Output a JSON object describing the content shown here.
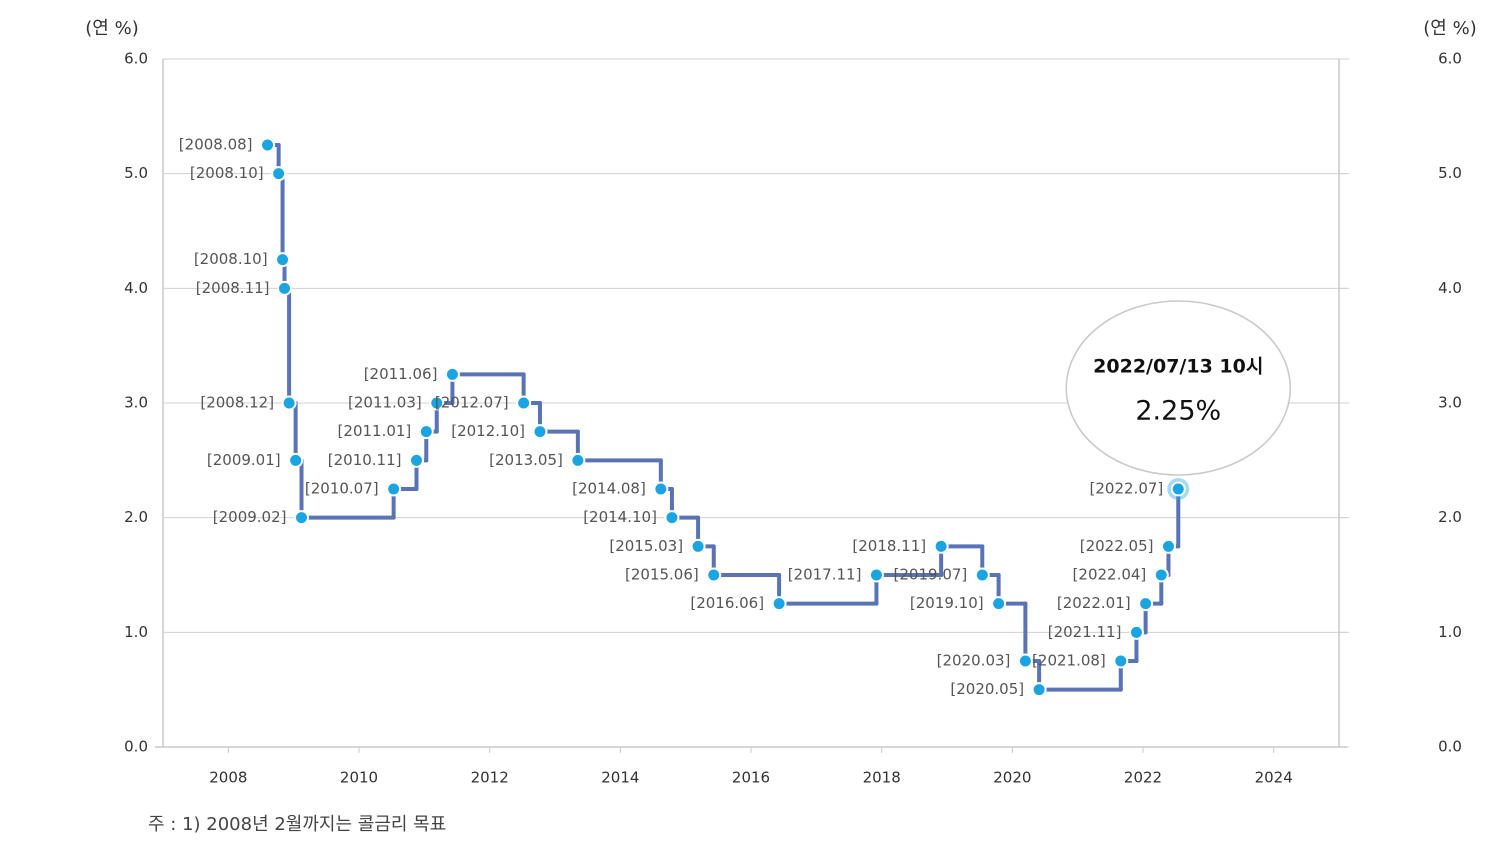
{
  "chart_data": {
    "type": "step",
    "y_label": "(연 %)",
    "y2_label": "(연 %)",
    "x": [
      2008.6,
      2008.77,
      2008.83,
      2008.86,
      2008.93,
      2009.03,
      2009.12,
      2010.53,
      2010.88,
      2011.03,
      2011.19,
      2011.43,
      2012.52,
      2012.77,
      2013.35,
      2014.62,
      2014.79,
      2015.19,
      2015.43,
      2016.43,
      2017.92,
      2018.91,
      2019.54,
      2019.79,
      2020.2,
      2020.41,
      2021.66,
      2021.9,
      2022.04,
      2022.28,
      2022.39,
      2022.54
    ],
    "series": [
      {
        "color": "#5a73b6",
        "marker_color": "#1aa5e2",
        "values": [
          5.25,
          5.0,
          4.25,
          4.0,
          3.0,
          2.5,
          2.0,
          2.25,
          2.5,
          2.75,
          3.0,
          3.25,
          3.0,
          2.75,
          2.5,
          2.25,
          2.0,
          1.75,
          1.5,
          1.25,
          1.5,
          1.75,
          1.5,
          1.25,
          0.75,
          0.5,
          0.75,
          1.0,
          1.25,
          1.5,
          1.75,
          2.25
        ],
        "point_labels": [
          "[2008.08]",
          "[2008.10]",
          "[2008.10]",
          "[2008.11]",
          "[2008.12]",
          "[2009.01]",
          "[2009.02]",
          "[2010.07]",
          "[2010.11]",
          "[2011.01]",
          "[2011.03]",
          "[2011.06]",
          "[2012.07]",
          "[2012.10]",
          "[2013.05]",
          "[2014.08]",
          "[2014.10]",
          "[2015.03]",
          "[2015.06]",
          "[2016.06]",
          "[2017.11]",
          "[2018.11]",
          "[2019.07]",
          "[2019.10]",
          "[2020.03]",
          "[2020.05]",
          "[2021.08]",
          "[2021.11]",
          "[2022.01]",
          "[2022.04]",
          "[2022.05]",
          "[2022.07]"
        ]
      }
    ],
    "xlim": [
      2007,
      2025
    ],
    "xticks": [
      2008,
      2010,
      2012,
      2014,
      2016,
      2018,
      2020,
      2022,
      2024
    ],
    "ylim": [
      0,
      6
    ],
    "yticks": [
      {
        "value": 0,
        "label": "0.0"
      },
      {
        "value": 1,
        "label": "1.0"
      },
      {
        "value": 2,
        "label": "2.0"
      },
      {
        "value": 3,
        "label": "3.0"
      },
      {
        "value": 4,
        "label": "4.0"
      },
      {
        "value": 5,
        "label": "5.0"
      },
      {
        "value": 6,
        "label": "6.0"
      }
    ],
    "y2lim": [
      0,
      6
    ],
    "y2ticks": [
      {
        "value": 0,
        "label": "0.0"
      },
      {
        "value": 1,
        "label": "1.0"
      },
      {
        "value": 2,
        "label": "2.0"
      },
      {
        "value": 3,
        "label": "3.0"
      },
      {
        "value": 4,
        "label": "4.0"
      },
      {
        "value": 5,
        "label": "5.0"
      },
      {
        "value": 6,
        "label": "6.0"
      }
    ],
    "grid": true,
    "tooltip": {
      "title": "2022/07/13 10시",
      "value_label": "2.25%"
    },
    "footnote": "주 : 1) 2008년 2월까지는 콜금리 목표"
  }
}
